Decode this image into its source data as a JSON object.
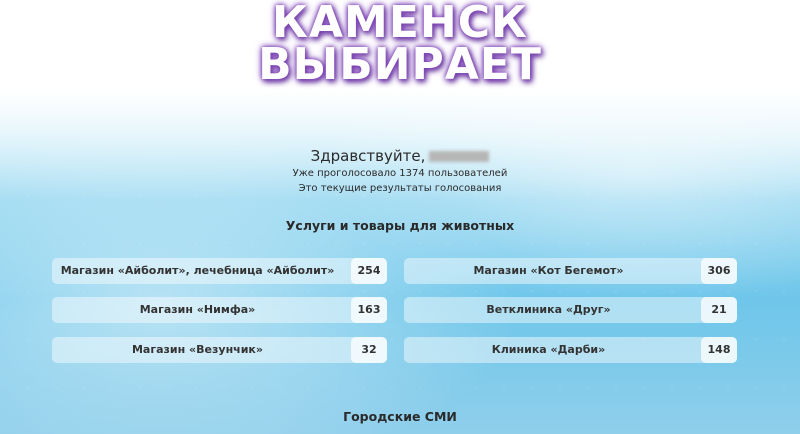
{
  "logo": {
    "line1": "КАМЕНСК",
    "line2": "ВЫБИРАЕТ"
  },
  "greeting": "Здравствуйте,",
  "voted_text": "Уже проголосовало 1374 пользователей",
  "results_text": "Это текущие результаты голосования",
  "category": "Услуги и товары для животных",
  "items": [
    {
      "name": "Магазин «Айболит», лечебница «Айболит»",
      "votes": "254"
    },
    {
      "name": "Магазин «Кот Бегемот»",
      "votes": "306"
    },
    {
      "name": "Магазин «Нимфа»",
      "votes": "163"
    },
    {
      "name": "Ветклиника «Друг»",
      "votes": "21"
    },
    {
      "name": "Магазин «Везунчик»",
      "votes": "32"
    },
    {
      "name": "Клиника «Дарби»",
      "votes": "148"
    }
  ],
  "next_category": "Городские СМИ"
}
